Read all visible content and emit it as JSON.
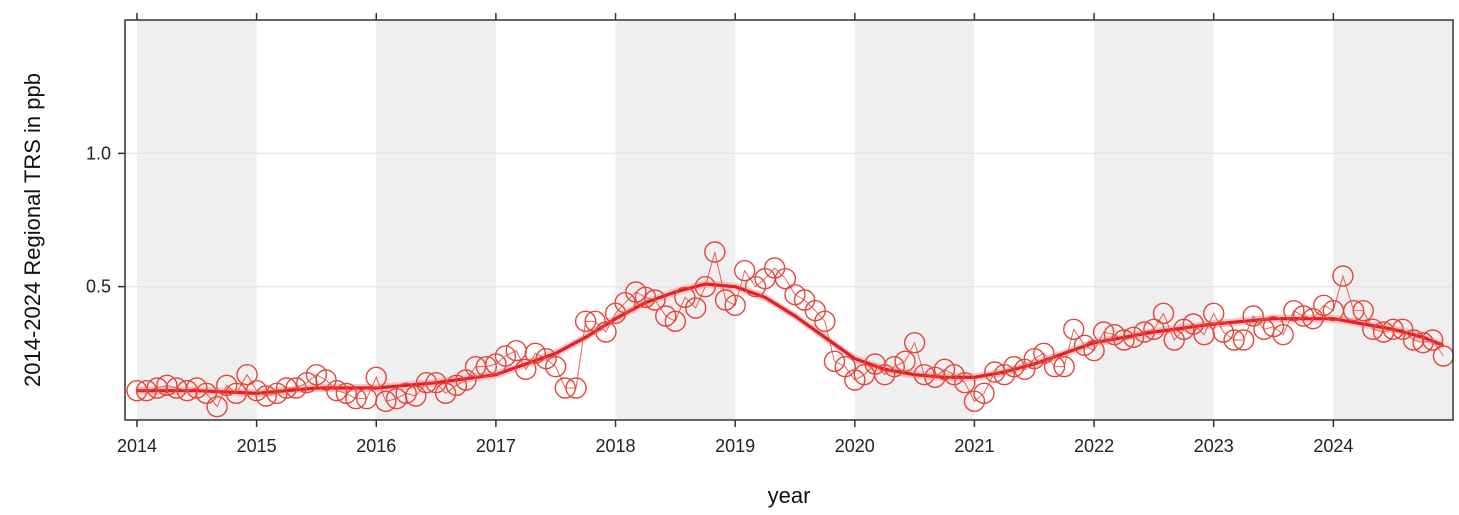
{
  "chart_data": {
    "type": "scatter",
    "title": "",
    "xlabel": "year",
    "ylabel": "2014-2024 Regional TRS in ppb",
    "xlim": [
      2013.9,
      2025.0
    ],
    "ylim": [
      0.0,
      1.5
    ],
    "x_ticks": [
      2014,
      2015,
      2016,
      2017,
      2018,
      2019,
      2020,
      2021,
      2022,
      2023,
      2024
    ],
    "y_ticks": [
      0.5,
      1.0
    ],
    "y_tick_labels": [
      "0.5",
      "1.0"
    ],
    "grid": "horizontal at y ticks",
    "background": "alternating grey/white year bands",
    "colors": {
      "points": "#e8443a",
      "trend": "#e01f26",
      "trend_band": "#f6b8b4",
      "band": "#efefef"
    },
    "series": [
      {
        "type": "scatter_line",
        "x": [
          2014.0,
          2014.08,
          2014.17,
          2014.25,
          2014.33,
          2014.42,
          2014.5,
          2014.58,
          2014.67,
          2014.75,
          2014.83,
          2014.92,
          2015.0,
          2015.08,
          2015.17,
          2015.25,
          2015.33,
          2015.42,
          2015.5,
          2015.58,
          2015.67,
          2015.75,
          2015.83,
          2015.92,
          2016.0,
          2016.08,
          2016.17,
          2016.25,
          2016.33,
          2016.42,
          2016.5,
          2016.58,
          2016.67,
          2016.75,
          2016.83,
          2016.92,
          2017.0,
          2017.08,
          2017.17,
          2017.25,
          2017.33,
          2017.42,
          2017.5,
          2017.58,
          2017.67,
          2017.75,
          2017.83,
          2017.92,
          2018.0,
          2018.08,
          2018.17,
          2018.25,
          2018.33,
          2018.42,
          2018.5,
          2018.58,
          2018.67,
          2018.75,
          2018.83,
          2018.92,
          2019.0,
          2019.08,
          2019.17,
          2019.25,
          2019.33,
          2019.42,
          2019.5,
          2019.58,
          2019.67,
          2019.75,
          2019.83,
          2019.92,
          2020.0,
          2020.08,
          2020.17,
          2020.25,
          2020.33,
          2020.42,
          2020.5,
          2020.58,
          2020.67,
          2020.75,
          2020.83,
          2020.92,
          2021.0,
          2021.08,
          2021.17,
          2021.25,
          2021.33,
          2021.42,
          2021.5,
          2021.58,
          2021.67,
          2021.75,
          2021.83,
          2021.92,
          2022.0,
          2022.08,
          2022.17,
          2022.25,
          2022.33,
          2022.42,
          2022.5,
          2022.58,
          2022.67,
          2022.75,
          2022.83,
          2022.92,
          2023.0,
          2023.08,
          2023.17,
          2023.25,
          2023.33,
          2023.42,
          2023.5,
          2023.58,
          2023.67,
          2023.75,
          2023.83,
          2023.92,
          2024.0,
          2024.08,
          2024.17,
          2024.25,
          2024.33,
          2024.42,
          2024.5,
          2024.58,
          2024.67,
          2024.75,
          2024.83,
          2024.92
        ],
        "y": [
          0.11,
          0.11,
          0.12,
          0.13,
          0.12,
          0.11,
          0.12,
          0.1,
          0.05,
          0.13,
          0.1,
          0.17,
          0.11,
          0.09,
          0.1,
          0.12,
          0.12,
          0.14,
          0.17,
          0.15,
          0.11,
          0.1,
          0.08,
          0.08,
          0.16,
          0.07,
          0.08,
          0.1,
          0.09,
          0.14,
          0.14,
          0.1,
          0.13,
          0.15,
          0.2,
          0.2,
          0.21,
          0.24,
          0.26,
          0.19,
          0.25,
          0.23,
          0.2,
          0.12,
          0.12,
          0.37,
          0.37,
          0.33,
          0.4,
          0.44,
          0.48,
          0.46,
          0.45,
          0.39,
          0.37,
          0.46,
          0.42,
          0.5,
          0.63,
          0.45,
          0.43,
          0.56,
          0.5,
          0.53,
          0.57,
          0.53,
          0.47,
          0.45,
          0.41,
          0.37,
          0.22,
          0.2,
          0.15,
          0.17,
          0.21,
          0.17,
          0.2,
          0.22,
          0.29,
          0.17,
          0.16,
          0.19,
          0.17,
          0.14,
          0.07,
          0.1,
          0.18,
          0.17,
          0.2,
          0.19,
          0.23,
          0.25,
          0.2,
          0.2,
          0.34,
          0.28,
          0.26,
          0.33,
          0.32,
          0.3,
          0.31,
          0.33,
          0.34,
          0.4,
          0.3,
          0.34,
          0.36,
          0.32,
          0.4,
          0.33,
          0.3,
          0.3,
          0.39,
          0.34,
          0.35,
          0.32,
          0.41,
          0.39,
          0.38,
          0.43,
          0.41,
          0.54,
          0.41,
          0.41,
          0.34,
          0.33,
          0.34,
          0.34,
          0.3,
          0.29,
          0.3,
          0.24
        ]
      },
      {
        "type": "trend",
        "x": [
          2014.0,
          2014.5,
          2015.0,
          2015.5,
          2016.0,
          2016.5,
          2017.0,
          2017.25,
          2017.5,
          2017.75,
          2018.0,
          2018.25,
          2018.5,
          2018.75,
          2019.0,
          2019.25,
          2019.5,
          2019.75,
          2020.0,
          2020.25,
          2020.5,
          2020.75,
          2021.0,
          2021.25,
          2021.5,
          2021.75,
          2022.0,
          2022.5,
          2023.0,
          2023.5,
          2024.0,
          2024.25,
          2024.5,
          2024.75,
          2024.92
        ],
        "y": [
          0.11,
          0.11,
          0.1,
          0.12,
          0.12,
          0.14,
          0.17,
          0.21,
          0.25,
          0.31,
          0.38,
          0.44,
          0.48,
          0.51,
          0.5,
          0.46,
          0.39,
          0.31,
          0.23,
          0.19,
          0.17,
          0.16,
          0.16,
          0.18,
          0.21,
          0.25,
          0.29,
          0.33,
          0.36,
          0.38,
          0.38,
          0.36,
          0.34,
          0.31,
          0.28
        ]
      }
    ]
  }
}
